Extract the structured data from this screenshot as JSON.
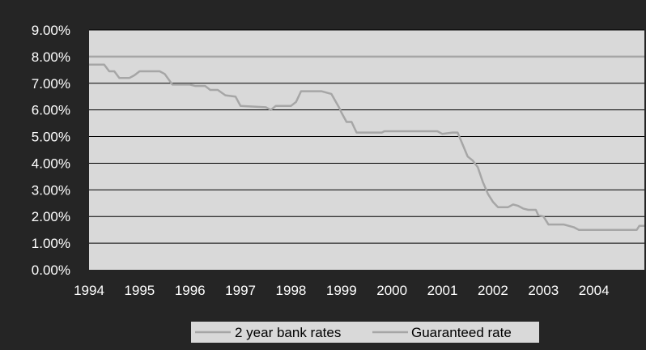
{
  "chart_data": {
    "type": "line",
    "title": "",
    "xlabel": "",
    "ylabel": "",
    "xlim": [
      1994,
      2005
    ],
    "ylim": [
      0,
      9
    ],
    "x_ticks": [
      "1994",
      "1995",
      "1996",
      "1997",
      "1998",
      "1999",
      "2000",
      "2001",
      "2002",
      "2003",
      "2004"
    ],
    "y_ticks": [
      "0.00%",
      "1.00%",
      "2.00%",
      "3.00%",
      "4.00%",
      "5.00%",
      "6.00%",
      "7.00%",
      "8.00%",
      "9.00%"
    ],
    "grid": true,
    "legend_position": "bottom",
    "plot_background": "#d9d9d9",
    "figure_background": "#252525",
    "series": [
      {
        "name": "2 year bank rates",
        "color": "#a6a6a6",
        "x": [
          1994.0,
          1994.3,
          1994.4,
          1994.5,
          1994.6,
          1994.8,
          1994.9,
          1995.0,
          1995.4,
          1995.5,
          1995.65,
          1996.0,
          1996.1,
          1996.3,
          1996.4,
          1996.55,
          1996.7,
          1996.9,
          1997.0,
          1997.5,
          1997.6,
          1997.7,
          1998.0,
          1998.1,
          1998.2,
          1998.6,
          1998.8,
          1998.95,
          1999.0,
          1999.1,
          1999.2,
          1999.3,
          1999.5,
          1999.8,
          1999.85,
          2000.0,
          2000.9,
          2001.0,
          2001.2,
          2001.3,
          2001.4,
          2001.5,
          2001.6,
          2001.7,
          2001.8,
          2001.9,
          2002.0,
          2002.1,
          2002.3,
          2002.4,
          2002.5,
          2002.6,
          2002.7,
          2002.85,
          2002.9,
          2003.0,
          2003.1,
          2003.2,
          2003.4,
          2003.6,
          2003.7,
          2003.8,
          2004.5,
          2004.7,
          2004.85,
          2004.9,
          2005.0
        ],
        "values": [
          7.7,
          7.7,
          7.45,
          7.45,
          7.2,
          7.2,
          7.3,
          7.45,
          7.45,
          7.35,
          6.95,
          6.95,
          6.9,
          6.9,
          6.75,
          6.75,
          6.55,
          6.5,
          6.15,
          6.1,
          6.0,
          6.15,
          6.15,
          6.3,
          6.7,
          6.7,
          6.6,
          6.1,
          5.9,
          5.55,
          5.55,
          5.15,
          5.15,
          5.15,
          5.2,
          5.2,
          5.2,
          5.1,
          5.15,
          5.15,
          4.7,
          4.25,
          4.1,
          3.85,
          3.3,
          2.85,
          2.55,
          2.35,
          2.35,
          2.45,
          2.4,
          2.3,
          2.25,
          2.25,
          2.05,
          2.0,
          1.7,
          1.7,
          1.7,
          1.6,
          1.5,
          1.5,
          1.5,
          1.5,
          1.5,
          1.65,
          1.65
        ]
      },
      {
        "name": "Guaranteed rate",
        "color": "#a6a6a6",
        "x": [
          1994.0,
          2005.0
        ],
        "values": [
          8.0,
          8.0
        ]
      }
    ]
  }
}
